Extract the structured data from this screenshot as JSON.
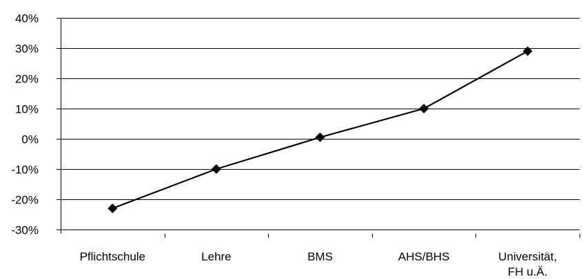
{
  "chart_data": {
    "type": "line",
    "title": "",
    "xlabel": "",
    "ylabel": "",
    "categories": [
      "Pflichtschule",
      "Lehre",
      "BMS",
      "AHS/BHS",
      "Universität, FH u.Ä."
    ],
    "category_label_lines": [
      [
        "Pflichtschule"
      ],
      [
        "Lehre"
      ],
      [
        "BMS"
      ],
      [
        "AHS/BHS"
      ],
      [
        "Universität,",
        "FH u.Ä."
      ]
    ],
    "series": [
      {
        "values": [
          -23,
          -10,
          0.5,
          10,
          29
        ],
        "color": "#000000",
        "marker": "diamond"
      }
    ],
    "ylim": [
      -30,
      40
    ],
    "yticks": [
      -30,
      -20,
      -10,
      0,
      10,
      20,
      30,
      40
    ],
    "ytick_labels": [
      "-30%",
      "-20%",
      "-10%",
      "0%",
      "10%",
      "20%",
      "30%",
      "40%"
    ],
    "grid": true,
    "legend": "none"
  }
}
